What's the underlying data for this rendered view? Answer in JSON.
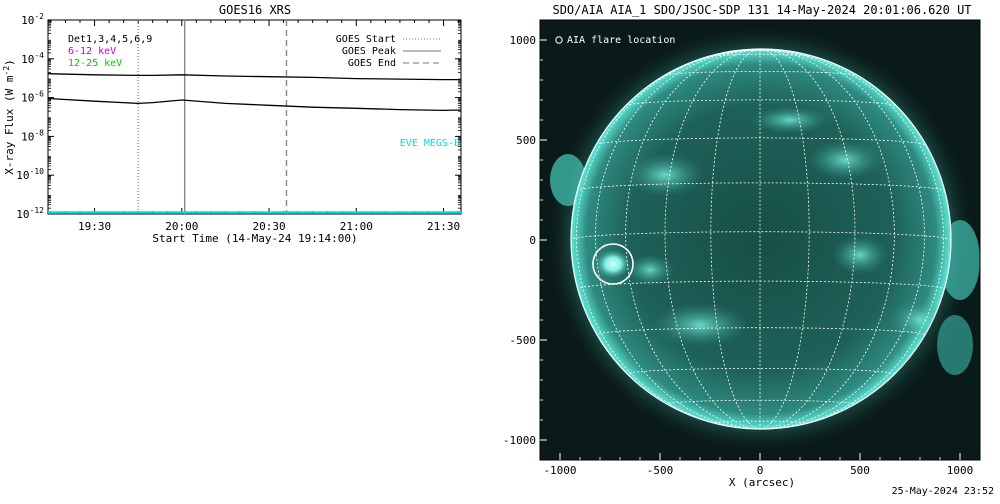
{
  "goes_chart": {
    "title": "GOES16 XRS",
    "ylabel_parts": [
      "X-ray Flux (W m",
      "-2",
      ")"
    ],
    "xlabel": "Start Time (14-May-24 19:14:00)",
    "legend_left": [
      {
        "text": "Det1,3,4,5,6,9",
        "color": "#000000"
      },
      {
        "text": "6-12 keV",
        "color": "#cc00cc"
      },
      {
        "text": "12-25 keV",
        "color": "#00cc00"
      }
    ],
    "legend_right": [
      {
        "label": "GOES Start",
        "style": "dotted"
      },
      {
        "label": "GOES Peak",
        "style": "solid"
      },
      {
        "label": "GOES End",
        "style": "dashed"
      }
    ],
    "eve_label": "EVE MEGS-B",
    "eve_color": "#00dddd"
  },
  "chart_data": [
    {
      "type": "line",
      "title": "GOES16 XRS",
      "xlabel": "Start Time (14-May-24 19:14:00)",
      "ylabel": "X-ray Flux (W m^-2)",
      "y_scale": "log",
      "ylim": [
        1e-12,
        0.01
      ],
      "xlim": [
        "19:14",
        "21:36"
      ],
      "x_ticks": [
        "19:30",
        "20:00",
        "20:30",
        "21:00",
        "21:30"
      ],
      "y_tick_exponents": [
        -12,
        -10,
        -8,
        -6,
        -4,
        -2
      ],
      "x": [
        "19:14",
        "19:30",
        "19:45",
        "19:50",
        "20:00",
        "20:15",
        "20:30",
        "20:45",
        "21:00",
        "21:15",
        "21:30",
        "21:36"
      ],
      "series": [
        {
          "values": [
            1.7e-05,
            1.5e-05,
            1.4e-05,
            1.4e-05,
            1.5e-05,
            1.3e-05,
            1.2e-05,
            1.1e-05,
            9.5e-06,
            9e-06,
            8.5e-06,
            8.5e-06
          ],
          "color": "#000000"
        },
        {
          "values": [
            9e-07,
            6.5e-07,
            5e-07,
            5.5e-07,
            7.5e-07,
            5e-07,
            4e-07,
            3.2e-07,
            2.8e-07,
            2.4e-07,
            2.2e-07,
            2.3e-07
          ],
          "color": "#000000"
        },
        {
          "values": [
            1.2e-12,
            1.2e-12,
            1.2e-12,
            1.2e-12,
            1.2e-12,
            1.2e-12,
            1.2e-12,
            1.2e-12,
            1.2e-12,
            1.2e-12,
            1.2e-12,
            1.2e-12
          ],
          "color": "#00dddd"
        }
      ],
      "goes_times": {
        "start": "19:45",
        "peak": "20:01",
        "end": "20:36"
      },
      "grid": false
    },
    {
      "type": "image",
      "title": "SDO/AIA AIA_1 SDO/JSOC-SDP 131 14-May-2024 20:01:06.620 UT",
      "xlabel": "X (arcsec)",
      "xlim": [
        -1100,
        1100
      ],
      "ylim": [
        -1100,
        1100
      ],
      "x_ticks": [
        -1000,
        -500,
        0,
        500,
        1000
      ],
      "y_ticks": [
        1000,
        500,
        0,
        -500,
        -1000
      ],
      "legend": "AIA flare location",
      "flare_location": [
        -750,
        -120
      ],
      "solar_radius_arcsec": 950,
      "grid": true
    }
  ],
  "aia_image": {
    "title": "SDO/AIA AIA_1 SDO/JSOC-SDP 131 14-May-2024 20:01:06.620 UT",
    "legend": "AIA flare location",
    "xlabel": "X (arcsec)",
    "disk_color": "#1b5a52",
    "limb_color": "#4fe0d0"
  },
  "footer": {
    "timestamp": "25-May-2024 23:52"
  }
}
